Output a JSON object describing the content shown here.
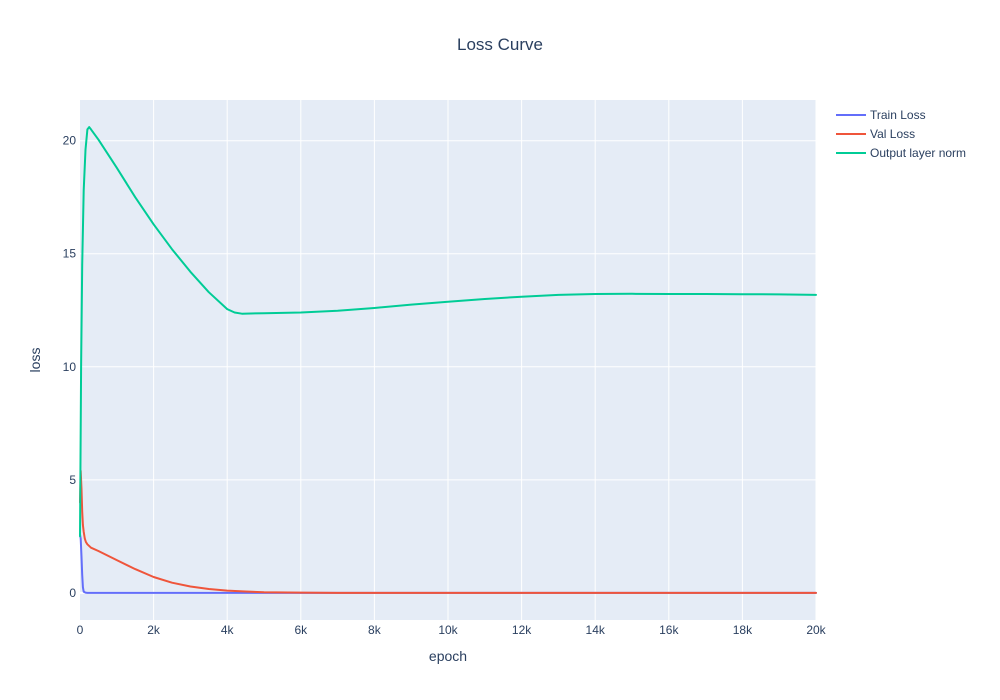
{
  "chart_data": {
    "type": "line",
    "title": "Loss Curve",
    "xlabel": "epoch",
    "ylabel": "loss",
    "xlim": [
      0,
      20000
    ],
    "ylim": [
      -1.2,
      21.8
    ],
    "x_ticks": [
      0,
      2000,
      4000,
      6000,
      8000,
      10000,
      12000,
      14000,
      16000,
      18000,
      20000
    ],
    "x_tick_labels": [
      "0",
      "2k",
      "4k",
      "6k",
      "8k",
      "10k",
      "12k",
      "14k",
      "16k",
      "18k",
      "20k"
    ],
    "y_ticks": [
      0,
      5,
      10,
      15,
      20
    ],
    "y_tick_labels": [
      "0",
      "5",
      "10",
      "15",
      "20"
    ],
    "grid": true,
    "legend_position": "top-right",
    "series": [
      {
        "name": "Train Loss",
        "color": "#636efa",
        "x": [
          0,
          20,
          40,
          60,
          80,
          100,
          150,
          200,
          500,
          1000,
          5000,
          10000,
          20000
        ],
        "y": [
          2.6,
          2.4,
          1.6,
          0.8,
          0.25,
          0.05,
          0.01,
          0.0,
          0.0,
          0.0,
          0.0,
          0.0,
          0.0
        ]
      },
      {
        "name": "Val Loss",
        "color": "#ef553b",
        "x": [
          0,
          20,
          40,
          60,
          80,
          100,
          130,
          160,
          200,
          300,
          500,
          1000,
          1500,
          2000,
          2500,
          3000,
          3500,
          4000,
          4500,
          5000,
          6000,
          7000,
          8000,
          10000,
          15000,
          20000
        ],
        "y": [
          4.0,
          5.4,
          4.6,
          3.6,
          3.0,
          2.7,
          2.4,
          2.25,
          2.15,
          2.0,
          1.85,
          1.45,
          1.05,
          0.7,
          0.45,
          0.28,
          0.17,
          0.1,
          0.06,
          0.03,
          0.01,
          0.0,
          0.0,
          0.0,
          0.0,
          0.0
        ]
      },
      {
        "name": "Output layer norm",
        "color": "#00cc96",
        "x": [
          0,
          30,
          60,
          100,
          150,
          200,
          250,
          300,
          500,
          1000,
          1500,
          2000,
          2500,
          3000,
          3500,
          4000,
          4200,
          4400,
          5000,
          6000,
          7000,
          8000,
          9000,
          10000,
          11000,
          12000,
          13000,
          14000,
          15000,
          16000,
          17000,
          18000,
          19000,
          20000
        ],
        "y": [
          2.5,
          10.0,
          14.5,
          17.8,
          19.6,
          20.5,
          20.6,
          20.5,
          20.05,
          18.8,
          17.5,
          16.3,
          15.2,
          14.2,
          13.3,
          12.55,
          12.4,
          12.35,
          12.37,
          12.4,
          12.48,
          12.6,
          12.75,
          12.88,
          13.0,
          13.1,
          13.18,
          13.22,
          13.23,
          13.22,
          13.22,
          13.21,
          13.2,
          13.18
        ]
      }
    ]
  }
}
